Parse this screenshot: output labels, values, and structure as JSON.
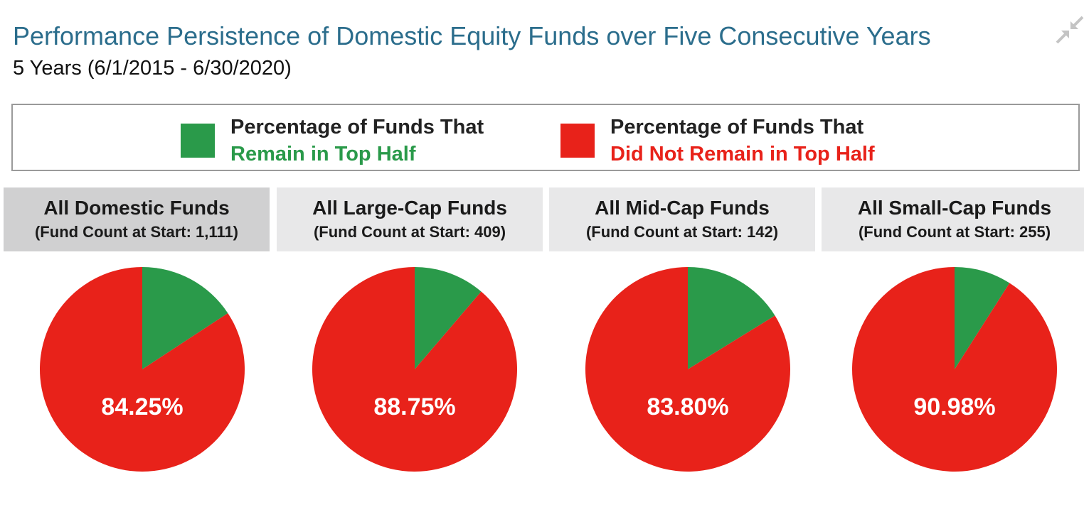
{
  "header": {
    "title": "Performance Persistence of Domestic Equity Funds over Five Consecutive Years",
    "subtitle": "5 Years (6/1/2015 - 6/30/2020)",
    "collapse_icon": "collapse-arrows-icon"
  },
  "legend": {
    "items": [
      {
        "line1": "Percentage of Funds That",
        "line2": "Remain in Top Half",
        "color": "#2a9a4a"
      },
      {
        "line1": "Percentage of Funds That",
        "line2": "Did Not Remain in Top Half",
        "color": "#e8221a"
      }
    ]
  },
  "chart_data": [
    {
      "type": "pie",
      "title": "All Domestic Funds",
      "subtitle": "(Fund Count at Start: 1,111)",
      "slices": [
        {
          "name": "Remain in Top Half",
          "value": 15.75,
          "color": "#2a9a4a"
        },
        {
          "name": "Did Not Remain in Top Half",
          "value": 84.25,
          "color": "#e8221a"
        }
      ],
      "label": "84.25%"
    },
    {
      "type": "pie",
      "title": "All Large-Cap Funds",
      "subtitle": "(Fund Count at Start: 409)",
      "slices": [
        {
          "name": "Remain in Top Half",
          "value": 11.25,
          "color": "#2a9a4a"
        },
        {
          "name": "Did Not Remain in Top Half",
          "value": 88.75,
          "color": "#e8221a"
        }
      ],
      "label": "88.75%"
    },
    {
      "type": "pie",
      "title": "All Mid-Cap Funds",
      "subtitle": "(Fund Count at Start: 142)",
      "slices": [
        {
          "name": "Remain in Top Half",
          "value": 16.2,
          "color": "#2a9a4a"
        },
        {
          "name": "Did Not Remain in Top Half",
          "value": 83.8,
          "color": "#e8221a"
        }
      ],
      "label": "83.80%"
    },
    {
      "type": "pie",
      "title": "All Small-Cap Funds",
      "subtitle": "(Fund Count at Start: 255)",
      "slices": [
        {
          "name": "Remain in Top Half",
          "value": 9.02,
          "color": "#2a9a4a"
        },
        {
          "name": "Did Not Remain in Top Half",
          "value": 90.98,
          "color": "#e8221a"
        }
      ],
      "label": "90.98%"
    }
  ]
}
